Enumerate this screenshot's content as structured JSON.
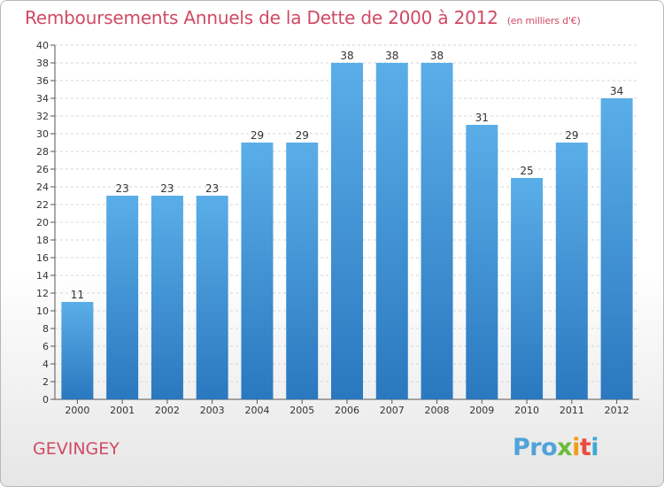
{
  "chart_data": {
    "type": "bar",
    "title": "Remboursements Annuels de la Dette de 2000 à 2012",
    "subtitle": "(en milliers d'€)",
    "xlabel": "",
    "ylabel": "",
    "categories": [
      "2000",
      "2001",
      "2002",
      "2003",
      "2004",
      "2005",
      "2006",
      "2007",
      "2008",
      "2009",
      "2010",
      "2011",
      "2012"
    ],
    "values": [
      11,
      23,
      23,
      23,
      29,
      29,
      38,
      38,
      38,
      31,
      25,
      29,
      34
    ],
    "ylim": [
      0,
      40
    ],
    "yticks": [
      0,
      2,
      4,
      6,
      8,
      10,
      12,
      14,
      16,
      18,
      20,
      22,
      24,
      26,
      28,
      30,
      32,
      34,
      36,
      38,
      40
    ],
    "grid": true,
    "legend": "none",
    "bar_color_top": "#5aaee8",
    "bar_color_bottom": "#2a78bf"
  },
  "footer": {
    "commune": "GEVINGEY",
    "logo": [
      "Pro",
      "x",
      "i",
      "t",
      "i"
    ]
  }
}
